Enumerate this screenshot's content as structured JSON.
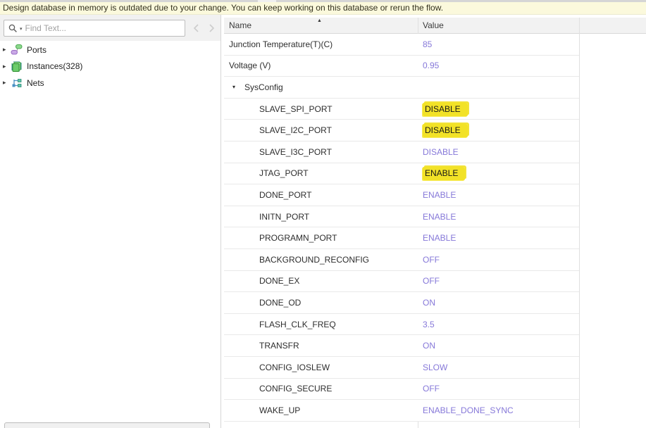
{
  "banner": {
    "text": "Design database in memory is outdated due to your change. You can keep working on this database or rerun the flow."
  },
  "search": {
    "placeholder": "Find Text..."
  },
  "tree": {
    "items": [
      {
        "label": "Ports",
        "icon": "ports-icon"
      },
      {
        "label": "Instances(328)",
        "icon": "instances-icon"
      },
      {
        "label": "Nets",
        "icon": "nets-icon"
      }
    ]
  },
  "table": {
    "columns": {
      "name": "Name",
      "value": "Value"
    },
    "rows": [
      {
        "name": "Junction Temperature(T)(C)",
        "value": "85",
        "indent": 0,
        "group": false,
        "highlight": false
      },
      {
        "name": "Voltage (V)",
        "value": "0.95",
        "indent": 0,
        "group": false,
        "highlight": false
      },
      {
        "name": "SysConfig",
        "value": "",
        "indent": 0,
        "group": true,
        "expanded": true,
        "highlight": false
      },
      {
        "name": "SLAVE_SPI_PORT",
        "value": "DISABLE",
        "indent": 1,
        "group": false,
        "highlight": true
      },
      {
        "name": "SLAVE_I2C_PORT",
        "value": "DISABLE",
        "indent": 1,
        "group": false,
        "highlight": true
      },
      {
        "name": "SLAVE_I3C_PORT",
        "value": "DISABLE",
        "indent": 1,
        "group": false,
        "highlight": false
      },
      {
        "name": "JTAG_PORT",
        "value": "ENABLE",
        "indent": 1,
        "group": false,
        "highlight": true
      },
      {
        "name": "DONE_PORT",
        "value": "ENABLE",
        "indent": 1,
        "group": false,
        "highlight": false
      },
      {
        "name": "INITN_PORT",
        "value": "ENABLE",
        "indent": 1,
        "group": false,
        "highlight": false
      },
      {
        "name": "PROGRAMN_PORT",
        "value": "ENABLE",
        "indent": 1,
        "group": false,
        "highlight": false
      },
      {
        "name": "BACKGROUND_RECONFIG",
        "value": "OFF",
        "indent": 1,
        "group": false,
        "highlight": false
      },
      {
        "name": "DONE_EX",
        "value": "OFF",
        "indent": 1,
        "group": false,
        "highlight": false
      },
      {
        "name": "DONE_OD",
        "value": "ON",
        "indent": 1,
        "group": false,
        "highlight": false
      },
      {
        "name": "FLASH_CLK_FREQ",
        "value": "3.5",
        "indent": 1,
        "group": false,
        "highlight": false
      },
      {
        "name": "TRANSFR",
        "value": "ON",
        "indent": 1,
        "group": false,
        "highlight": false
      },
      {
        "name": "CONFIG_IOSLEW",
        "value": "SLOW",
        "indent": 1,
        "group": false,
        "highlight": false
      },
      {
        "name": "CONFIG_SECURE",
        "value": "OFF",
        "indent": 1,
        "group": false,
        "highlight": false
      },
      {
        "name": "WAKE_UP",
        "value": "ENABLE_DONE_SYNC",
        "indent": 1,
        "group": false,
        "highlight": false
      }
    ]
  },
  "glyphs": {
    "expander_collapsed": "▸",
    "expander_expanded": "▾",
    "sort_asc": "▲"
  },
  "colors": {
    "value_text": "#8678d9",
    "highlight": "#f2e227",
    "banner_bg": "#fbf9dc",
    "header_bg": "#f2f2f2"
  }
}
